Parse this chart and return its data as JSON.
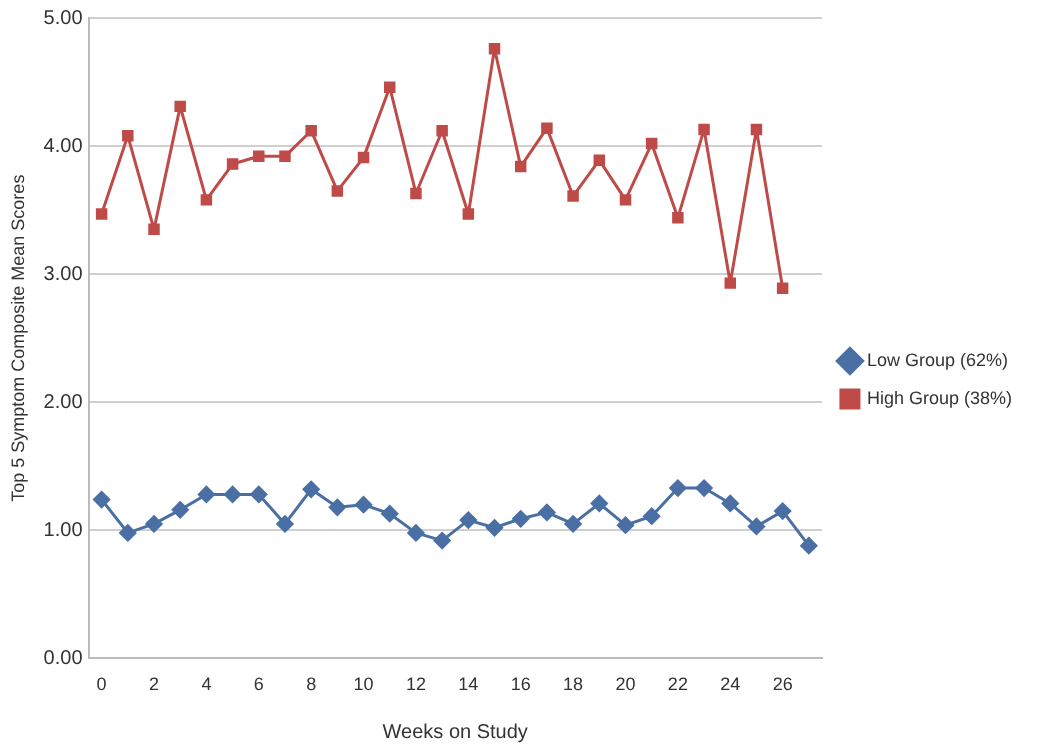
{
  "chart_data": {
    "type": "line",
    "xlabel": "Weeks on Study",
    "ylabel": "Top 5 Symptom Composite Mean Scores",
    "x": [
      0,
      1,
      2,
      3,
      4,
      5,
      6,
      7,
      8,
      9,
      10,
      11,
      12,
      13,
      14,
      15,
      16,
      17,
      18,
      19,
      20,
      21,
      22,
      23,
      24,
      25,
      26,
      27
    ],
    "xlim": [
      -0.5,
      27.5
    ],
    "xticks": [
      0,
      2,
      4,
      6,
      8,
      10,
      12,
      14,
      16,
      18,
      20,
      22,
      24,
      26
    ],
    "series": [
      {
        "name": "Low Group (62%)",
        "color": "#4a6fa5",
        "marker": "diamond",
        "values": [
          1.24,
          0.98,
          1.05,
          1.16,
          1.28,
          1.28,
          1.28,
          1.05,
          1.32,
          1.18,
          1.2,
          1.13,
          0.98,
          0.92,
          1.08,
          1.02,
          1.09,
          1.14,
          1.05,
          1.21,
          1.04,
          1.11,
          1.33,
          1.33,
          1.21,
          1.03,
          1.15,
          0.88
        ]
      },
      {
        "name": "High Group (38%)",
        "color": "#be4b48",
        "marker": "square",
        "values": [
          3.47,
          4.08,
          3.35,
          4.31,
          3.58,
          3.86,
          3.92,
          3.92,
          4.12,
          3.65,
          3.91,
          4.46,
          3.63,
          4.12,
          3.47,
          4.76,
          3.84,
          4.14,
          3.61,
          3.89,
          3.58,
          4.02,
          3.44,
          4.13,
          2.93,
          4.13,
          2.89,
          null
        ]
      }
    ],
    "ylim": [
      0,
      5
    ],
    "yticks": [
      {
        "value": 0,
        "label": "0.00"
      },
      {
        "value": 1,
        "label": "1.00"
      },
      {
        "value": 2,
        "label": "2.00"
      },
      {
        "value": 3,
        "label": "3.00"
      },
      {
        "value": 4,
        "label": "4.00"
      },
      {
        "value": 5,
        "label": "5.00"
      }
    ],
    "grid": "y",
    "legend": "right",
    "line_style": "solid"
  }
}
